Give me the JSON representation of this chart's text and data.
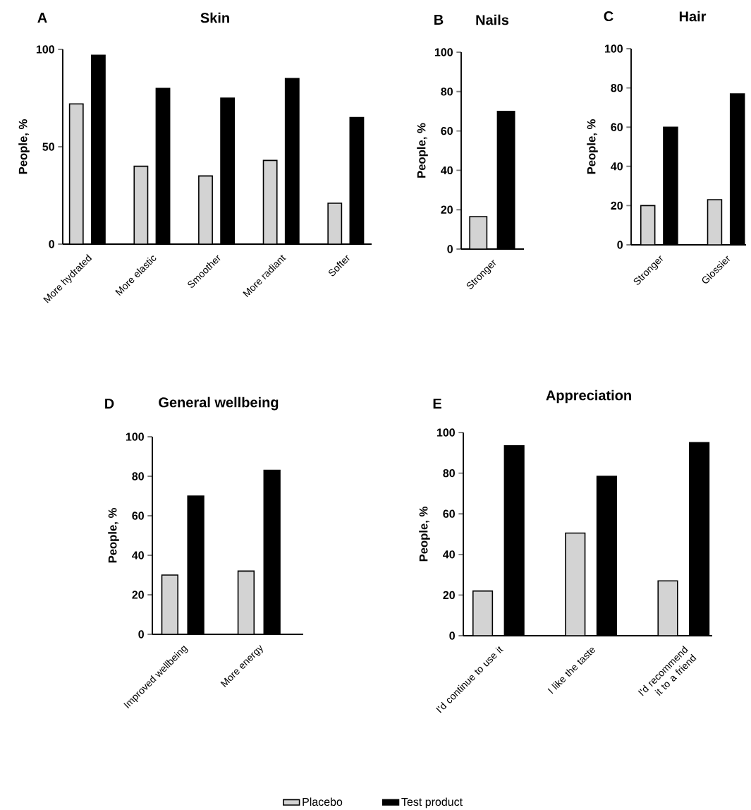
{
  "chart_data": [
    {
      "type": "bar",
      "title": "Skin",
      "annotations": [
        "A"
      ],
      "ylabel": "People, %",
      "categories": [
        "More hydrated",
        "More elastic",
        "Smoother",
        "More radiant",
        "Softer"
      ],
      "ylim": [
        0,
        100
      ],
      "yticks": [
        0,
        50,
        100
      ],
      "series": [
        {
          "color": "#d3d3d3",
          "values": [
            72,
            40,
            35,
            43,
            21
          ]
        },
        {
          "color": "#000000",
          "values": [
            97,
            80,
            75,
            85,
            65
          ]
        }
      ]
    },
    {
      "type": "bar",
      "title": "Nails",
      "annotations": [
        "B"
      ],
      "ylabel": "People, %",
      "categories": [
        "Stronger"
      ],
      "ylim": [
        0,
        100
      ],
      "yticks": [
        0,
        20,
        40,
        60,
        80,
        100
      ],
      "series": [
        {
          "color": "#d3d3d3",
          "values": [
            16.5
          ]
        },
        {
          "color": "#000000",
          "values": [
            70
          ]
        }
      ]
    },
    {
      "type": "bar",
      "title": "Hair",
      "annotations": [
        "C"
      ],
      "ylabel": "People, %",
      "categories": [
        "Stronger",
        "Glossier"
      ],
      "ylim": [
        0,
        100
      ],
      "yticks": [
        0,
        20,
        40,
        60,
        80,
        100
      ],
      "series": [
        {
          "color": "#d3d3d3",
          "values": [
            20,
            23
          ]
        },
        {
          "color": "#000000",
          "values": [
            60,
            77
          ]
        }
      ]
    },
    {
      "type": "bar",
      "title": "General wellbeing",
      "annotations": [
        "D"
      ],
      "ylabel": "People, %",
      "categories": [
        "Improved wellbeing",
        "More energy"
      ],
      "ylim": [
        0,
        100
      ],
      "yticks": [
        0,
        20,
        40,
        60,
        80,
        100
      ],
      "series": [
        {
          "color": "#d3d3d3",
          "values": [
            30,
            32
          ]
        },
        {
          "color": "#000000",
          "values": [
            70,
            83
          ]
        }
      ]
    },
    {
      "type": "bar",
      "title": "Appreciation",
      "annotations": [
        "E"
      ],
      "ylabel": "People, %",
      "categories": [
        "I'd continue to use it",
        "I like the taste",
        "I'd recommend it to a friend"
      ],
      "ylim": [
        0,
        100
      ],
      "yticks": [
        0,
        20,
        40,
        60,
        80,
        100
      ],
      "legend": "bottom",
      "series": [
        {
          "name": "Placebo",
          "color": "#d3d3d3",
          "values": [
            22,
            50.5,
            27
          ]
        },
        {
          "name": "Test product",
          "color": "#000000",
          "values": [
            93.5,
            78.5,
            95
          ]
        }
      ]
    }
  ]
}
